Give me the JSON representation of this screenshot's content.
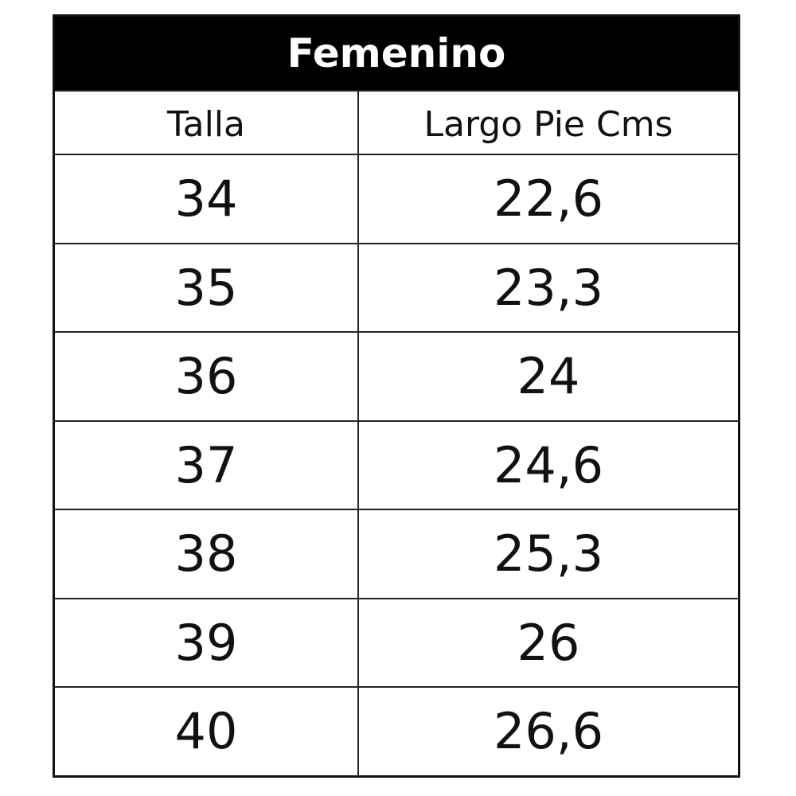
{
  "title": "Femenino",
  "columns": [
    "Talla",
    "Largo Pie Cms"
  ],
  "rows": [
    [
      "34",
      "22,6"
    ],
    [
      "35",
      "23,3"
    ],
    [
      "36",
      "24"
    ],
    [
      "37",
      "24,6"
    ],
    [
      "38",
      "25,3"
    ],
    [
      "39",
      "26"
    ],
    [
      "40",
      "26,6"
    ]
  ]
}
